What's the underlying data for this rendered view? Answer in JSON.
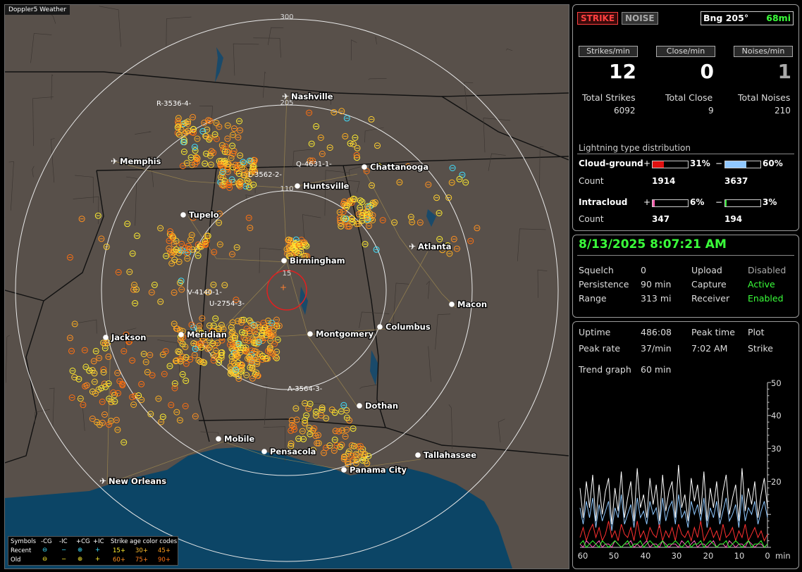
{
  "map": {
    "title": "Doppler5 Weather",
    "range_labels": [
      "300",
      "205",
      "110",
      "15"
    ],
    "cities": [
      {
        "name": "Nashville",
        "type": "airport"
      },
      {
        "name": "Memphis",
        "type": "airport"
      },
      {
        "name": "Chattanooga",
        "type": "city"
      },
      {
        "name": "Huntsville",
        "type": "city"
      },
      {
        "name": "Tupelo",
        "type": "city"
      },
      {
        "name": "Atlanta",
        "type": "airport"
      },
      {
        "name": "Birmingham",
        "type": "city"
      },
      {
        "name": "Macon",
        "type": "city"
      },
      {
        "name": "Jackson",
        "type": "city"
      },
      {
        "name": "Meridian",
        "type": "city"
      },
      {
        "name": "Montgomery",
        "type": "city"
      },
      {
        "name": "Columbus",
        "type": "city"
      },
      {
        "name": "Dothan",
        "type": "city"
      },
      {
        "name": "Mobile",
        "type": "city"
      },
      {
        "name": "Pensacola",
        "type": "city"
      },
      {
        "name": "Tallahassee",
        "type": "city"
      },
      {
        "name": "Panama City",
        "type": "city"
      },
      {
        "name": "New Orleans",
        "type": "airport"
      }
    ],
    "storm_labels": [
      "R-3536-4-",
      "L-3562-2-",
      "Q-4631-1-",
      "V-4140-1-",
      "U-2754-3-",
      "A-3564-3-"
    ],
    "legend": {
      "symbols_label": "Symbols",
      "col_neg_cg": "-CG",
      "col_neg_ic": "-IC",
      "col_pos_cg": "+CG",
      "col_pos_ic": "+IC",
      "age_label": "Strike age color codes",
      "recent_label": "Recent",
      "old_label": "Old",
      "ages_recent": [
        "15+",
        "30+",
        "45+"
      ],
      "ages_old": [
        "60+",
        "75+",
        "90+"
      ]
    }
  },
  "status": {
    "strike_btn": "STRIKE",
    "noise_btn": "NOISE",
    "bearing": "Bng 205°",
    "bearing_dist": "68mi",
    "headers": [
      "Strikes/min",
      "Close/min",
      "Noises/min"
    ],
    "rates": [
      "12",
      "0",
      "1"
    ],
    "total_labels": [
      "Total Strikes",
      "Total Close",
      "Total Noises"
    ],
    "totals": [
      "6092",
      "9",
      "210"
    ],
    "dist_title": "Lightning type distribution",
    "cg_label": "Cloud-ground",
    "ic_label": "Intracloud",
    "count_label": "Count",
    "plus": "+",
    "minus": "−",
    "cg_pos_pct": "31%",
    "cg_neg_pct": "60%",
    "cg_pos_count": "1914",
    "cg_neg_count": "3637",
    "ic_pos_pct": "6%",
    "ic_neg_pct": "3%",
    "ic_pos_count": "347",
    "ic_neg_count": "194",
    "cg_pos_frac": 0.31,
    "cg_neg_frac": 0.6,
    "ic_pos_frac": 0.06,
    "ic_neg_frac": 0.03
  },
  "settings": {
    "datetime": "8/13/2025 8:07:21 AM",
    "squelch_label": "Squelch",
    "squelch": "0",
    "persistence_label": "Persistence",
    "persistence": "90 min",
    "range_label": "Range",
    "range": "313 mi",
    "upload_label": "Upload",
    "upload": "Disabled",
    "capture_label": "Capture",
    "capture": "Active",
    "receiver_label": "Receiver",
    "receiver": "Enabled"
  },
  "trend": {
    "uptime_label": "Uptime",
    "uptime": "486:08",
    "peak_time_label": "Peak time",
    "peak_time": "7:02 AM",
    "plot_label": "Plot",
    "plot": "Strike",
    "peak_rate_label": "Peak rate",
    "peak_rate": "37/min",
    "trend_label": "Trend graph",
    "trend_window": "60 min",
    "x_ticks": [
      "60",
      "50",
      "40",
      "30",
      "20",
      "10",
      "0"
    ],
    "x_unit": "min",
    "y_ticks": [
      "50",
      "40",
      "30",
      "20"
    ]
  },
  "chart_data": {
    "type": "line",
    "xlabel": "min",
    "xlim": [
      60,
      0
    ],
    "ylim": [
      0,
      50
    ],
    "series": [
      {
        "color": "#ffffff",
        "values": [
          18,
          9,
          20,
          12,
          22,
          8,
          19,
          10,
          17,
          21,
          7,
          18,
          11,
          23,
          9,
          15,
          20,
          8,
          24,
          12,
          16,
          9,
          21,
          13,
          19,
          8,
          22,
          11,
          17,
          20,
          9,
          25,
          12,
          16,
          8,
          21,
          14,
          19,
          10,
          23,
          8,
          18,
          12,
          20,
          9,
          17,
          22,
          10,
          15,
          19,
          8,
          24,
          11,
          18,
          13,
          20,
          9,
          16,
          21,
          12
        ]
      },
      {
        "color": "#8fc8ff",
        "values": [
          12,
          7,
          14,
          9,
          15,
          6,
          13,
          8,
          11,
          14,
          5,
          12,
          9,
          16,
          7,
          10,
          13,
          6,
          15,
          9,
          11,
          7,
          14,
          10,
          12,
          6,
          15,
          8,
          12,
          14,
          7,
          16,
          9,
          11,
          6,
          14,
          10,
          13,
          8,
          15,
          6,
          12,
          9,
          14,
          7,
          11,
          15,
          8,
          10,
          13,
          6,
          16,
          8,
          12,
          10,
          14,
          7,
          11,
          14,
          9
        ]
      },
      {
        "color": "#ff3030",
        "values": [
          3,
          6,
          2,
          5,
          7,
          3,
          6,
          2,
          4,
          8,
          3,
          5,
          2,
          7,
          4,
          3,
          6,
          2,
          8,
          3,
          5,
          2,
          6,
          4,
          3,
          7,
          2,
          5,
          3,
          6,
          2,
          7,
          4,
          3,
          5,
          2,
          6,
          3,
          8,
          2,
          4,
          6,
          3,
          5,
          2,
          7,
          3,
          4,
          6,
          2,
          5,
          3,
          7,
          2,
          4,
          6,
          3,
          5,
          2,
          4
        ]
      },
      {
        "color": "#ff60c0",
        "values": [
          1,
          0,
          2,
          1,
          0,
          1,
          2,
          0,
          1,
          1,
          0,
          2,
          1,
          0,
          1,
          1,
          2,
          0,
          1,
          0,
          1,
          2,
          0,
          1,
          1,
          0,
          2,
          1,
          0,
          1,
          1,
          0,
          2,
          1,
          0,
          1,
          2,
          0,
          1,
          1,
          0,
          1,
          2,
          0,
          1,
          1,
          0,
          2,
          1,
          0,
          1,
          1,
          0,
          2,
          1,
          0,
          1,
          1,
          0,
          1
        ]
      },
      {
        "color": "#30ff30",
        "values": [
          1,
          2,
          0,
          1,
          2,
          1,
          0,
          2,
          1,
          0,
          1,
          2,
          1,
          0,
          1,
          2,
          0,
          1,
          1,
          2,
          0,
          1,
          2,
          1,
          0,
          1,
          2,
          0,
          1,
          1,
          2,
          1,
          0,
          1,
          2,
          0,
          1,
          1,
          2,
          0,
          1,
          2,
          1,
          0,
          1,
          1,
          2,
          0,
          1,
          2,
          1,
          0,
          1,
          2,
          0,
          1,
          1,
          2,
          0,
          1
        ]
      }
    ]
  }
}
